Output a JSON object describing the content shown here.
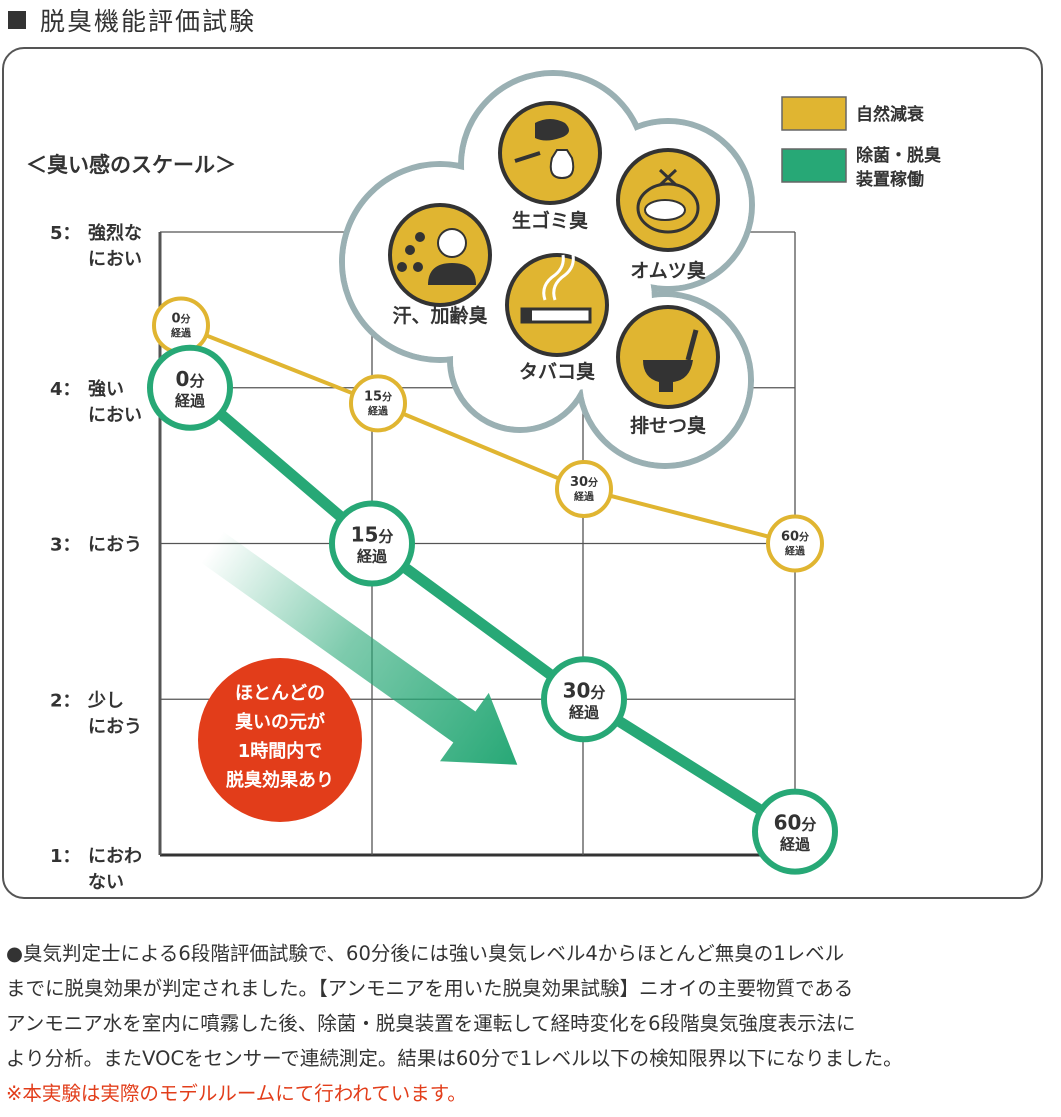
{
  "title": "脱臭機能評価試験",
  "chart_data": {
    "type": "line",
    "ylabel": "＜臭い感のスケール＞",
    "ylim": [
      1,
      5
    ],
    "y_ticks": [
      {
        "value": 5,
        "num": "5：",
        "label": [
          "強烈な",
          "におい"
        ]
      },
      {
        "value": 4,
        "num": "4：",
        "label": [
          "強い",
          "におい"
        ]
      },
      {
        "value": 3,
        "num": "3：",
        "label": [
          "におう"
        ]
      },
      {
        "value": 2,
        "num": "2：",
        "label": [
          "少し",
          "におう"
        ]
      },
      {
        "value": 1,
        "num": "1：",
        "label": [
          "におわ",
          "ない"
        ]
      }
    ],
    "categories": [
      "0分経過",
      "15分経過",
      "30分経過",
      "60分経過"
    ],
    "point_labels": [
      {
        "num": "0",
        "unit": "分",
        "sub": "経過"
      },
      {
        "num": "15",
        "unit": "分",
        "sub": "経過"
      },
      {
        "num": "30",
        "unit": "分",
        "sub": "経過"
      },
      {
        "num": "60",
        "unit": "分",
        "sub": "経過"
      }
    ],
    "series": [
      {
        "name": "自然減衰",
        "color": "#e0b531",
        "values": [
          4.4,
          3.9,
          3.35,
          3.0
        ]
      },
      {
        "name": "除菌・脱臭装置稼働",
        "color": "#27a876",
        "values": [
          4.0,
          3.0,
          2.0,
          1.15
        ]
      }
    ],
    "grid": true,
    "legend": {
      "position": "top-right",
      "items": [
        {
          "lines": [
            "自然減衰"
          ],
          "color": "#e0b531"
        },
        {
          "lines": [
            "除菌・脱臭",
            "装置稼働"
          ],
          "color": "#27a876"
        }
      ]
    },
    "annotation": {
      "lines": [
        "ほとんどの",
        "臭いの元が",
        "1時間内で",
        "脱臭効果あり"
      ],
      "color": "#e23d1a"
    },
    "odor_types": [
      {
        "label": "生ゴミ臭",
        "icon": "garbage-fish-icon"
      },
      {
        "label": "オムツ臭",
        "icon": "diaper-icon"
      },
      {
        "label": "汗、加齢臭",
        "icon": "sweat-person-icon"
      },
      {
        "label": "タバコ臭",
        "icon": "cigarette-icon"
      },
      {
        "label": "排せつ臭",
        "icon": "toilet-icon"
      }
    ]
  },
  "description": {
    "lines": [
      "●臭気判定士による6段階評価試験で、60分後には強い臭気レベル4からほとんど無臭の1レベル",
      "までに脱臭効果が判定されました。【アンモニアを用いた脱臭効果試験】ニオイの主要物質である",
      "アンモニア水を室内に噴霧した後、除菌・脱臭装置を運転して経時変化を6段階臭気強度表示法に",
      "より分析。またVOCをセンサーで連続測定。結果は60分で1レベル以下の検知限界以下になりました。"
    ],
    "note": "※本実験は実際のモデルルームにて行われています。"
  }
}
